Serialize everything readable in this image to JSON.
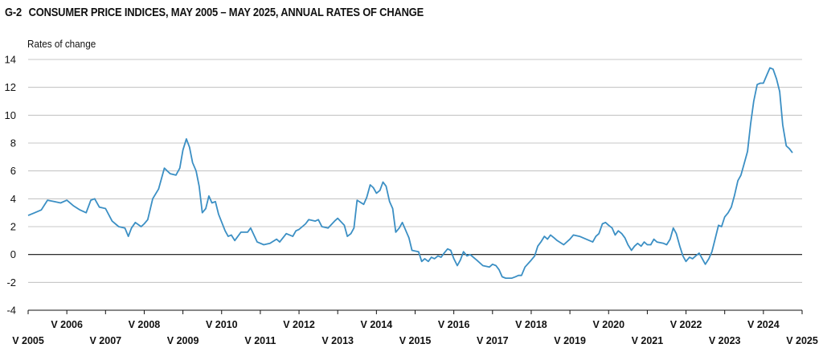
{
  "title": {
    "number": "G-2",
    "text": "CONSUMER PRICE INDICES, MAY 2005 – MAY 2025, ANNUAL RATES OF CHANGE"
  },
  "chart_data": {
    "type": "line",
    "title": "CONSUMER PRICE INDICES, MAY 2005 – MAY 2025, ANNUAL RATES OF CHANGE",
    "ylabel": "Rates of change",
    "xlabel": "",
    "ylim": [
      -4,
      14
    ],
    "yticks": [
      -4,
      -2,
      0,
      2,
      4,
      6,
      8,
      10,
      12,
      14
    ],
    "grid": "horizontal",
    "line_color": "#3b8fc4",
    "xlim": [
      2005.33,
      2025.33
    ],
    "xticks_lower": [
      {
        "x": 2005.33,
        "label": "V 2005"
      },
      {
        "x": 2007.33,
        "label": "V 2007"
      },
      {
        "x": 2009.33,
        "label": "V 2009"
      },
      {
        "x": 2011.33,
        "label": "V 2011"
      },
      {
        "x": 2013.33,
        "label": "V 2013"
      },
      {
        "x": 2015.33,
        "label": "V 2015"
      },
      {
        "x": 2017.33,
        "label": "V 2017"
      },
      {
        "x": 2019.33,
        "label": "V 2019"
      },
      {
        "x": 2021.33,
        "label": "V 2021"
      },
      {
        "x": 2023.33,
        "label": "V 2023"
      },
      {
        "x": 2025.33,
        "label": "V 2025"
      }
    ],
    "xticks_upper": [
      {
        "x": 2006.33,
        "label": "V 2006"
      },
      {
        "x": 2008.33,
        "label": "V 2008"
      },
      {
        "x": 2010.33,
        "label": "V 2010"
      },
      {
        "x": 2012.33,
        "label": "V 2012"
      },
      {
        "x": 2014.33,
        "label": "V 2014"
      },
      {
        "x": 2016.33,
        "label": "V 2016"
      },
      {
        "x": 2018.33,
        "label": "V 2018"
      },
      {
        "x": 2020.33,
        "label": "V 2020"
      },
      {
        "x": 2022.33,
        "label": "V 2022"
      },
      {
        "x": 2024.33,
        "label": "V 2024"
      }
    ],
    "series": [
      {
        "points": [
          [
            2005.33,
            2.8
          ],
          [
            2005.5,
            3.0
          ],
          [
            2005.67,
            3.2
          ],
          [
            2005.83,
            3.9
          ],
          [
            2006.0,
            3.8
          ],
          [
            2006.17,
            3.7
          ],
          [
            2006.33,
            3.9
          ],
          [
            2006.5,
            3.5
          ],
          [
            2006.67,
            3.2
          ],
          [
            2006.83,
            3.0
          ],
          [
            2006.95,
            3.9
          ],
          [
            2007.05,
            4.0
          ],
          [
            2007.17,
            3.4
          ],
          [
            2007.33,
            3.3
          ],
          [
            2007.5,
            2.4
          ],
          [
            2007.67,
            2.0
          ],
          [
            2007.83,
            1.9
          ],
          [
            2007.92,
            1.3
          ],
          [
            2008.0,
            1.9
          ],
          [
            2008.1,
            2.3
          ],
          [
            2008.25,
            2.0
          ],
          [
            2008.33,
            2.2
          ],
          [
            2008.42,
            2.5
          ],
          [
            2008.55,
            4.0
          ],
          [
            2008.7,
            4.7
          ],
          [
            2008.85,
            6.2
          ],
          [
            2009.0,
            5.8
          ],
          [
            2009.15,
            5.7
          ],
          [
            2009.25,
            6.2
          ],
          [
            2009.33,
            7.5
          ],
          [
            2009.42,
            8.3
          ],
          [
            2009.5,
            7.7
          ],
          [
            2009.58,
            6.6
          ],
          [
            2009.67,
            6.0
          ],
          [
            2009.75,
            4.9
          ],
          [
            2009.83,
            3.0
          ],
          [
            2009.92,
            3.3
          ],
          [
            2010.0,
            4.2
          ],
          [
            2010.08,
            3.7
          ],
          [
            2010.17,
            3.8
          ],
          [
            2010.25,
            2.9
          ],
          [
            2010.42,
            1.7
          ],
          [
            2010.5,
            1.3
          ],
          [
            2010.58,
            1.4
          ],
          [
            2010.67,
            1.0
          ],
          [
            2010.83,
            1.6
          ],
          [
            2011.0,
            1.6
          ],
          [
            2011.08,
            1.9
          ],
          [
            2011.25,
            0.9
          ],
          [
            2011.42,
            0.7
          ],
          [
            2011.58,
            0.8
          ],
          [
            2011.75,
            1.1
          ],
          [
            2011.83,
            0.9
          ],
          [
            2012.0,
            1.5
          ],
          [
            2012.17,
            1.3
          ],
          [
            2012.25,
            1.7
          ],
          [
            2012.33,
            1.8
          ],
          [
            2012.5,
            2.2
          ],
          [
            2012.58,
            2.5
          ],
          [
            2012.75,
            2.4
          ],
          [
            2012.83,
            2.5
          ],
          [
            2012.92,
            2.0
          ],
          [
            2013.08,
            1.9
          ],
          [
            2013.25,
            2.4
          ],
          [
            2013.33,
            2.6
          ],
          [
            2013.5,
            2.1
          ],
          [
            2013.58,
            1.3
          ],
          [
            2013.67,
            1.5
          ],
          [
            2013.75,
            1.9
          ],
          [
            2013.83,
            3.9
          ],
          [
            2014.0,
            3.6
          ],
          [
            2014.08,
            4.1
          ],
          [
            2014.17,
            5.0
          ],
          [
            2014.25,
            4.8
          ],
          [
            2014.33,
            4.4
          ],
          [
            2014.42,
            4.6
          ],
          [
            2014.5,
            5.2
          ],
          [
            2014.58,
            4.9
          ],
          [
            2014.67,
            3.8
          ],
          [
            2014.75,
            3.3
          ],
          [
            2014.83,
            1.6
          ],
          [
            2014.92,
            1.9
          ],
          [
            2015.0,
            2.3
          ],
          [
            2015.17,
            1.2
          ],
          [
            2015.25,
            0.3
          ],
          [
            2015.42,
            0.2
          ],
          [
            2015.5,
            -0.5
          ],
          [
            2015.58,
            -0.3
          ],
          [
            2015.67,
            -0.5
          ],
          [
            2015.75,
            -0.2
          ],
          [
            2015.83,
            -0.3
          ],
          [
            2015.92,
            -0.1
          ],
          [
            2016.0,
            -0.2
          ],
          [
            2016.08,
            0.1
          ],
          [
            2016.17,
            0.4
          ],
          [
            2016.25,
            0.3
          ],
          [
            2016.33,
            -0.3
          ],
          [
            2016.42,
            -0.8
          ],
          [
            2016.5,
            -0.4
          ],
          [
            2016.58,
            0.2
          ],
          [
            2016.67,
            -0.1
          ],
          [
            2016.75,
            0.0
          ],
          [
            2016.92,
            -0.4
          ],
          [
            2017.08,
            -0.8
          ],
          [
            2017.25,
            -0.9
          ],
          [
            2017.33,
            -0.7
          ],
          [
            2017.42,
            -0.8
          ],
          [
            2017.5,
            -1.1
          ],
          [
            2017.58,
            -1.6
          ],
          [
            2017.67,
            -1.7
          ],
          [
            2017.83,
            -1.7
          ],
          [
            2017.92,
            -1.6
          ],
          [
            2018.0,
            -1.5
          ],
          [
            2018.08,
            -1.5
          ],
          [
            2018.17,
            -0.9
          ],
          [
            2018.33,
            -0.4
          ],
          [
            2018.42,
            -0.1
          ],
          [
            2018.5,
            0.6
          ],
          [
            2018.58,
            0.9
          ],
          [
            2018.67,
            1.3
          ],
          [
            2018.75,
            1.1
          ],
          [
            2018.83,
            1.4
          ],
          [
            2018.92,
            1.2
          ],
          [
            2019.0,
            1.0
          ],
          [
            2019.17,
            0.7
          ],
          [
            2019.33,
            1.1
          ],
          [
            2019.42,
            1.4
          ],
          [
            2019.58,
            1.3
          ],
          [
            2019.75,
            1.1
          ],
          [
            2019.92,
            0.9
          ],
          [
            2020.0,
            1.3
          ],
          [
            2020.08,
            1.5
          ],
          [
            2020.17,
            2.2
          ],
          [
            2020.25,
            2.3
          ],
          [
            2020.33,
            2.1
          ],
          [
            2020.42,
            1.9
          ],
          [
            2020.5,
            1.4
          ],
          [
            2020.58,
            1.7
          ],
          [
            2020.67,
            1.5
          ],
          [
            2020.75,
            1.2
          ],
          [
            2020.83,
            0.7
          ],
          [
            2020.92,
            0.3
          ],
          [
            2021.0,
            0.6
          ],
          [
            2021.08,
            0.8
          ],
          [
            2021.17,
            0.6
          ],
          [
            2021.25,
            0.9
          ],
          [
            2021.33,
            0.7
          ],
          [
            2021.42,
            0.7
          ],
          [
            2021.5,
            1.1
          ],
          [
            2021.58,
            0.9
          ],
          [
            2021.75,
            0.8
          ],
          [
            2021.83,
            0.7
          ],
          [
            2021.92,
            1.1
          ],
          [
            2022.0,
            1.9
          ],
          [
            2022.08,
            1.5
          ],
          [
            2022.17,
            0.6
          ],
          [
            2022.25,
            -0.1
          ],
          [
            2022.33,
            -0.5
          ],
          [
            2022.42,
            -0.2
          ],
          [
            2022.5,
            -0.3
          ],
          [
            2022.58,
            -0.1
          ],
          [
            2022.67,
            0.1
          ],
          [
            2022.75,
            -0.3
          ],
          [
            2022.83,
            -0.7
          ],
          [
            2022.92,
            -0.3
          ],
          [
            2023.0,
            0.2
          ],
          [
            2023.08,
            1.1
          ],
          [
            2023.17,
            2.1
          ],
          [
            2023.25,
            2.0
          ],
          [
            2023.33,
            2.7
          ],
          [
            2023.42,
            3.0
          ],
          [
            2023.5,
            3.4
          ],
          [
            2023.58,
            4.2
          ],
          [
            2023.67,
            5.3
          ],
          [
            2023.75,
            5.7
          ],
          [
            2023.83,
            6.5
          ],
          [
            2023.92,
            7.4
          ],
          [
            2024.0,
            9.4
          ],
          [
            2024.08,
            11.0
          ],
          [
            2024.17,
            12.2
          ],
          [
            2024.25,
            12.3
          ],
          [
            2024.33,
            12.3
          ],
          [
            2024.42,
            12.9
          ],
          [
            2024.5,
            13.4
          ],
          [
            2024.58,
            13.3
          ],
          [
            2024.67,
            12.6
          ],
          [
            2024.75,
            11.7
          ],
          [
            2024.83,
            9.3
          ],
          [
            2024.92,
            7.8
          ],
          [
            2025.0,
            7.6
          ],
          [
            2025.08,
            7.3
          ]
        ]
      }
    ]
  }
}
